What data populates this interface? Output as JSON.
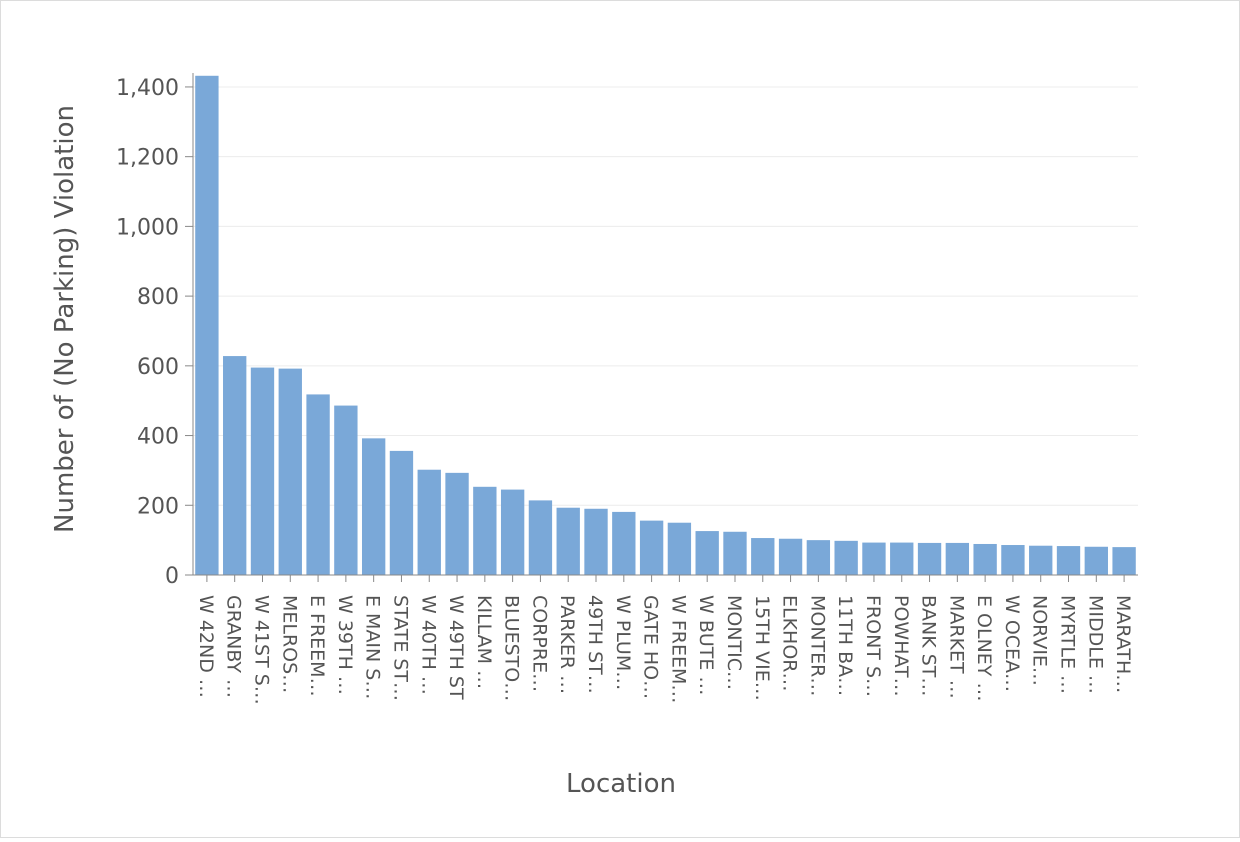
{
  "chart_data": {
    "type": "bar",
    "title": "",
    "xlabel": "Location",
    "ylabel": "Number of (No Parking) Violation",
    "ylim": [
      0,
      1440
    ],
    "yticks": [
      0,
      200,
      400,
      600,
      800,
      1000,
      1200,
      1400
    ],
    "ytick_labels": [
      "0",
      "200",
      "400",
      "600",
      "800",
      "1,000",
      "1,200",
      "1,400"
    ],
    "grid": true,
    "bar_color": "#7aa8d8",
    "categories": [
      "W 42ND …",
      "GRANBY …",
      "W 41ST S…",
      "MELROS…",
      "E FREEM…",
      "W 39TH …",
      "E MAIN S…",
      "STATE ST…",
      "W 40TH …",
      "W 49TH ST",
      "KILLAM …",
      "BLUESTO…",
      "CORPRE…",
      "PARKER …",
      "49TH ST…",
      "W PLUM…",
      "GATE HO…",
      "W FREEM…",
      "W BUTE …",
      "MONTIC…",
      "15TH VIE…",
      "ELKHOR…",
      "MONTER…",
      "11TH BA…",
      "FRONT S…",
      "POWHAT…",
      "BANK ST…",
      "MARKET …",
      "E OLNEY …",
      "W OCEA…",
      "NORVIE…",
      "MYRTLE …",
      "MIDDLE …",
      "MARATH…"
    ],
    "values": [
      1432,
      628,
      595,
      592,
      518,
      486,
      392,
      356,
      302,
      293,
      253,
      245,
      214,
      193,
      190,
      181,
      156,
      150,
      126,
      124,
      106,
      104,
      100,
      98,
      93,
      93,
      92,
      92,
      89,
      86,
      84,
      83,
      81,
      80
    ]
  }
}
